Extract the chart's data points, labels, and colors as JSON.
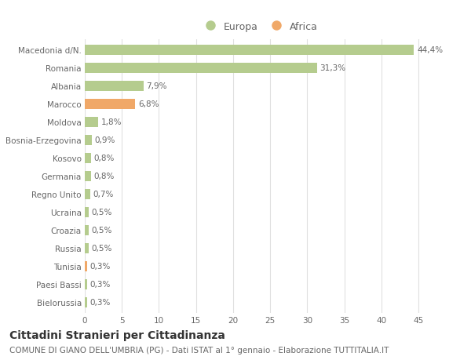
{
  "categories": [
    "Macedonia d/N.",
    "Romania",
    "Albania",
    "Marocco",
    "Moldova",
    "Bosnia-Erzegovina",
    "Kosovo",
    "Germania",
    "Regno Unito",
    "Ucraina",
    "Croazia",
    "Russia",
    "Tunisia",
    "Paesi Bassi",
    "Bielorussia"
  ],
  "values": [
    44.4,
    31.3,
    7.9,
    6.8,
    1.8,
    0.9,
    0.8,
    0.8,
    0.7,
    0.5,
    0.5,
    0.5,
    0.3,
    0.3,
    0.3
  ],
  "labels": [
    "44,4%",
    "31,3%",
    "7,9%",
    "6,8%",
    "1,8%",
    "0,9%",
    "0,8%",
    "0,8%",
    "0,7%",
    "0,5%",
    "0,5%",
    "0,5%",
    "0,3%",
    "0,3%",
    "0,3%"
  ],
  "colors": [
    "#b5cc8e",
    "#b5cc8e",
    "#b5cc8e",
    "#f0a868",
    "#b5cc8e",
    "#b5cc8e",
    "#b5cc8e",
    "#b5cc8e",
    "#b5cc8e",
    "#b5cc8e",
    "#b5cc8e",
    "#b5cc8e",
    "#f0a868",
    "#b5cc8e",
    "#b5cc8e"
  ],
  "legend_europa_color": "#b5cc8e",
  "legend_africa_color": "#f0a868",
  "title": "Cittadini Stranieri per Cittadinanza",
  "subtitle": "COMUNE DI GIANO DELL'UMBRIA (PG) - Dati ISTAT al 1° gennaio - Elaborazione TUTTITALIA.IT",
  "xlim": [
    0,
    47
  ],
  "xticks": [
    0,
    5,
    10,
    15,
    20,
    25,
    30,
    35,
    40,
    45
  ],
  "background_color": "#ffffff",
  "grid_color": "#e0e0e0",
  "bar_height": 0.6,
  "label_fontsize": 7.5,
  "tick_fontsize": 7.5,
  "title_fontsize": 10,
  "subtitle_fontsize": 7.5
}
